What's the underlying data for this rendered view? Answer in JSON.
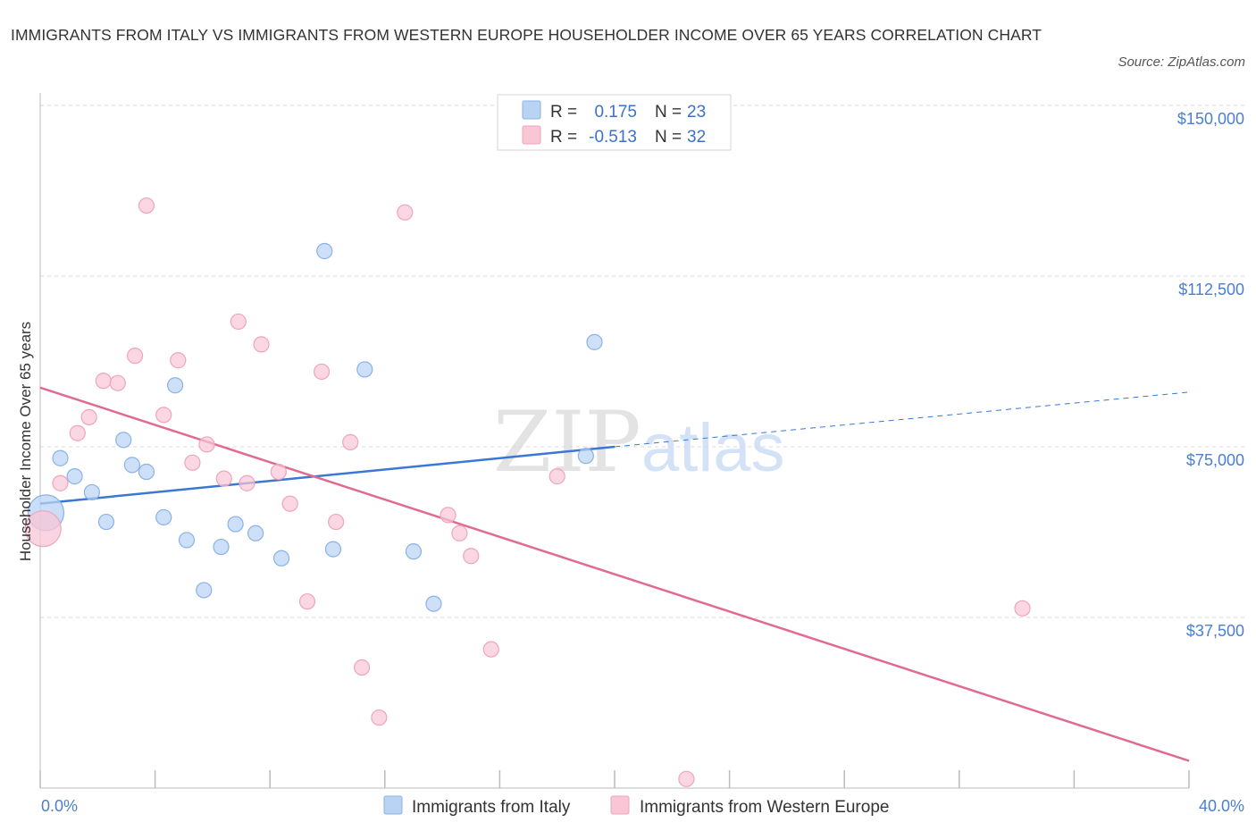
{
  "title": "IMMIGRANTS FROM ITALY VS IMMIGRANTS FROM WESTERN EUROPE HOUSEHOLDER INCOME OVER 65 YEARS CORRELATION CHART",
  "source": "Source: ZipAtlas.com",
  "watermark": {
    "zip": "ZIP",
    "atlas": "atlas"
  },
  "stats_legend": {
    "italy": {
      "r_label": "R =",
      "r_value": "0.175",
      "n_label": "N =",
      "n_value": "23"
    },
    "western_europe": {
      "r_label": "R =",
      "r_value": "-0.513",
      "n_label": "N =",
      "n_value": "32"
    }
  },
  "colors": {
    "italy_fill": "#b9d3f5",
    "italy_stroke": "#8ab2e6",
    "italy_line": "#3a78d4",
    "we_fill": "#f8c6d5",
    "we_stroke": "#eea5bc",
    "we_line": "#e06a94",
    "grid": "#d9d9d9",
    "axis_label": "#4a7fd0"
  },
  "chart_data": {
    "type": "scatter",
    "title": "IMMIGRANTS FROM ITALY VS IMMIGRANTS FROM WESTERN EUROPE HOUSEHOLDER INCOME OVER 65 YEARS CORRELATION CHART",
    "xlabel": "",
    "ylabel": "Householder Income Over 65 years",
    "xlim": [
      0,
      40
    ],
    "ylim": [
      0,
      150000
    ],
    "x_tick_labels": [
      "0.0%",
      "40.0%"
    ],
    "y_ticks": [
      37500,
      75000,
      112500,
      150000
    ],
    "y_tick_labels": [
      "$37,500",
      "$75,000",
      "$112,500",
      "$150,000"
    ],
    "grid": true,
    "series": [
      {
        "name": "Immigrants from Italy",
        "r": 0.175,
        "n": 23,
        "points": [
          {
            "x": 0.2,
            "y": 60500,
            "big": true
          },
          {
            "x": 0.7,
            "y": 72500
          },
          {
            "x": 1.2,
            "y": 68500
          },
          {
            "x": 1.8,
            "y": 65000
          },
          {
            "x": 2.3,
            "y": 58500
          },
          {
            "x": 2.9,
            "y": 76500
          },
          {
            "x": 3.2,
            "y": 71000
          },
          {
            "x": 3.7,
            "y": 69500
          },
          {
            "x": 4.3,
            "y": 59500
          },
          {
            "x": 4.7,
            "y": 88500
          },
          {
            "x": 5.1,
            "y": 54500
          },
          {
            "x": 5.7,
            "y": 43500
          },
          {
            "x": 6.3,
            "y": 53000
          },
          {
            "x": 6.8,
            "y": 58000
          },
          {
            "x": 7.5,
            "y": 56000
          },
          {
            "x": 8.4,
            "y": 50500
          },
          {
            "x": 9.9,
            "y": 118000
          },
          {
            "x": 10.2,
            "y": 52500
          },
          {
            "x": 11.3,
            "y": 92000
          },
          {
            "x": 13.0,
            "y": 52000
          },
          {
            "x": 13.7,
            "y": 40500
          },
          {
            "x": 19.3,
            "y": 98000
          },
          {
            "x": 19.0,
            "y": 73000
          }
        ],
        "trend": {
          "x1": 0,
          "y1": 62500,
          "x2": 20,
          "y2": 75000,
          "x_dash_end": 40,
          "y_dash_end": 87000
        }
      },
      {
        "name": "Immigrants from Western Europe",
        "r": -0.513,
        "n": 32,
        "points": [
          {
            "x": 0.1,
            "y": 57000,
            "big": true
          },
          {
            "x": 0.7,
            "y": 67000
          },
          {
            "x": 1.3,
            "y": 78000
          },
          {
            "x": 1.7,
            "y": 81500
          },
          {
            "x": 2.2,
            "y": 89500
          },
          {
            "x": 2.7,
            "y": 89000
          },
          {
            "x": 3.3,
            "y": 95000
          },
          {
            "x": 3.7,
            "y": 128000
          },
          {
            "x": 4.3,
            "y": 82000
          },
          {
            "x": 4.8,
            "y": 94000
          },
          {
            "x": 5.3,
            "y": 71500
          },
          {
            "x": 5.8,
            "y": 75500
          },
          {
            "x": 6.4,
            "y": 68000
          },
          {
            "x": 6.9,
            "y": 102500
          },
          {
            "x": 7.2,
            "y": 67000
          },
          {
            "x": 7.7,
            "y": 97500
          },
          {
            "x": 8.3,
            "y": 69500
          },
          {
            "x": 8.7,
            "y": 62500
          },
          {
            "x": 9.3,
            "y": 41000
          },
          {
            "x": 9.8,
            "y": 91500
          },
          {
            "x": 10.3,
            "y": 58500
          },
          {
            "x": 10.8,
            "y": 76000
          },
          {
            "x": 11.2,
            "y": 26500
          },
          {
            "x": 11.8,
            "y": 15500
          },
          {
            "x": 12.7,
            "y": 126500
          },
          {
            "x": 14.2,
            "y": 60000
          },
          {
            "x": 14.6,
            "y": 56000
          },
          {
            "x": 15.0,
            "y": 51000
          },
          {
            "x": 15.7,
            "y": 30500
          },
          {
            "x": 18.0,
            "y": 68500
          },
          {
            "x": 22.5,
            "y": 2000
          },
          {
            "x": 34.2,
            "y": 39500
          }
        ],
        "trend": {
          "x1": 0,
          "y1": 88000,
          "x2": 40,
          "y2": 6000
        }
      }
    ]
  },
  "bottom_legend": {
    "italy_label": "Immigrants from Italy",
    "we_label": "Immigrants from Western Europe"
  }
}
